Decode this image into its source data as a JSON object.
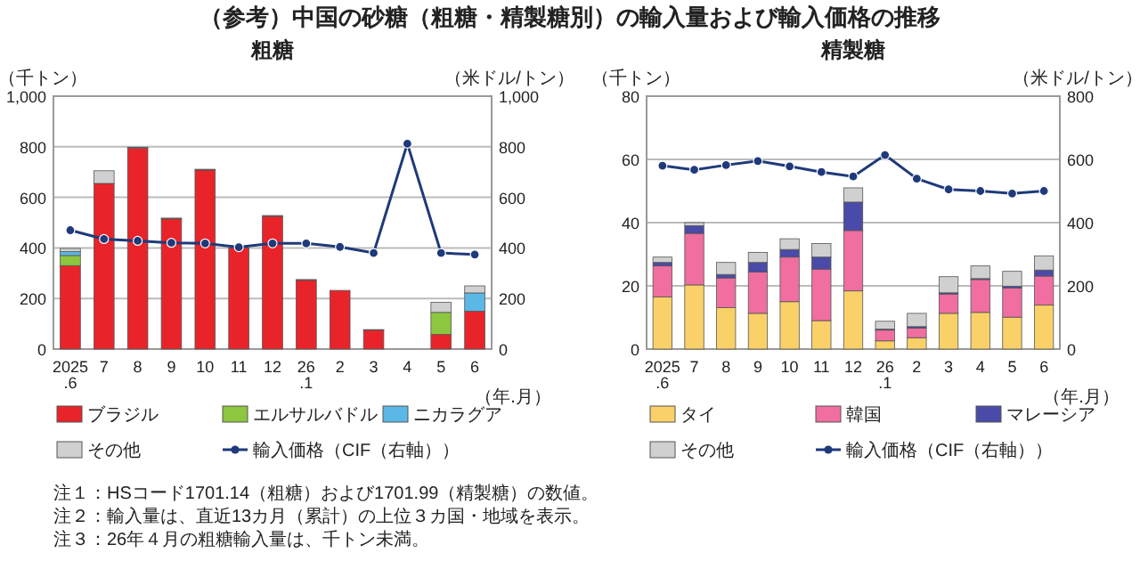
{
  "chart_data": [
    {
      "type": "bar",
      "stacked": true,
      "title": "（参考）中国の砂糖（粗糖・精製糖別）の輸入量および輸入価格の推移",
      "subtitle": "粗糖",
      "ylabel": "（千トン）",
      "y2label": "（米ドル/トン）",
      "xlabel": "（年.月）",
      "categories": [
        "2025\n.6",
        "7",
        "8",
        "9",
        "10",
        "11",
        "12",
        "26\n.1",
        "2",
        "3",
        "4",
        "5",
        "6"
      ],
      "ylim": [
        0,
        1000
      ],
      "yticks": [
        0,
        200,
        400,
        600,
        800,
        {
          "value": 1000,
          "label": "1,000"
        }
      ],
      "y2lim": [
        0,
        1000
      ],
      "y2ticks": [
        0,
        200,
        400,
        600,
        800,
        {
          "value": 1000,
          "label": "1,000"
        }
      ],
      "grid": "y",
      "legend": "bottom",
      "series": [
        {
          "name": "ブラジル",
          "color": "#e8242a",
          "values": [
            330,
            655,
            795,
            515,
            708,
            400,
            525,
            272,
            232,
            75,
            0,
            58,
            150
          ]
        },
        {
          "name": "エルサルバドル",
          "color": "#8dc63f",
          "values": [
            40,
            0,
            0,
            0,
            0,
            0,
            0,
            0,
            0,
            0,
            0,
            87,
            0
          ]
        },
        {
          "name": "ニカラグア",
          "color": "#5bb8e6",
          "values": [
            15,
            0,
            0,
            0,
            0,
            0,
            0,
            0,
            0,
            0,
            0,
            0,
            72
          ]
        },
        {
          "name": "その他",
          "color": "#d0d0d0",
          "values": [
            13,
            50,
            3,
            3,
            3,
            null,
            3,
            3,
            null,
            2,
            null,
            40,
            28
          ]
        },
        {
          "name": "輸入価格（CIF（右軸））",
          "type": "line",
          "axis": "y2",
          "marker": "circle",
          "color": "#1f3a7a",
          "values": [
            470,
            435,
            428,
            420,
            418,
            403,
            418,
            418,
            404,
            380,
            812,
            380,
            374
          ]
        }
      ],
      "annotations": [
        "注１：HSコード1701.14（粗糖）および1701.99（精製糖）の数値。",
        "注２：輸入量は、直近13カ月（累計）の上位３カ国・地域を表示。",
        "注３：26年４月の粗糖輸入量は、千トン未満。"
      ]
    },
    {
      "type": "bar",
      "stacked": true,
      "title": "精製糖",
      "ylabel": "（千トン）",
      "y2label": "（米ドル/トン）",
      "xlabel": "（年.月）",
      "categories": [
        "2025\n.6",
        "7",
        "8",
        "9",
        "10",
        "11",
        "12",
        "26\n.1",
        "2",
        "3",
        "4",
        "5",
        "6"
      ],
      "ylim": [
        0,
        80
      ],
      "yticks": [
        0,
        20,
        40,
        60,
        80
      ],
      "y2lim": [
        0,
        800
      ],
      "y2ticks": [
        0,
        200,
        400,
        600,
        800
      ],
      "grid": "y",
      "legend": "bottom",
      "series": [
        {
          "name": "タイ",
          "color": "#f9d168",
          "values": [
            16.5,
            20.3,
            13.1,
            11.3,
            15,
            9,
            18.4,
            2.6,
            3.6,
            11.3,
            11.6,
            10.1,
            13.9
          ]
        },
        {
          "name": "韓国",
          "color": "#f06ea0",
          "values": [
            9.8,
            16.3,
            9.4,
            13.1,
            14.1,
            16.3,
            19.1,
            3.4,
            3,
            6.1,
            10.4,
            9.2,
            9.2
          ]
        },
        {
          "name": "マレーシア",
          "color": "#4a4aa8",
          "values": [
            1.1,
            2.4,
            1.1,
            3,
            2.4,
            3.8,
            9,
            0.3,
            0.5,
            0.4,
            0.3,
            0.6,
            1.9
          ]
        },
        {
          "name": "その他",
          "color": "#d0d0d0",
          "values": [
            1.7,
            1,
            3.8,
            3.2,
            3.4,
            4.3,
            4.5,
            2.5,
            4.2,
            5.1,
            4,
            4.7,
            4.5
          ]
        },
        {
          "name": "輸入価格（CIF（右軸））",
          "type": "line",
          "axis": "y2",
          "marker": "circle",
          "color": "#1f3a7a",
          "values": [
            580,
            567,
            582,
            595,
            578,
            560,
            546,
            614,
            539,
            505,
            500,
            492,
            500
          ]
        }
      ]
    }
  ]
}
